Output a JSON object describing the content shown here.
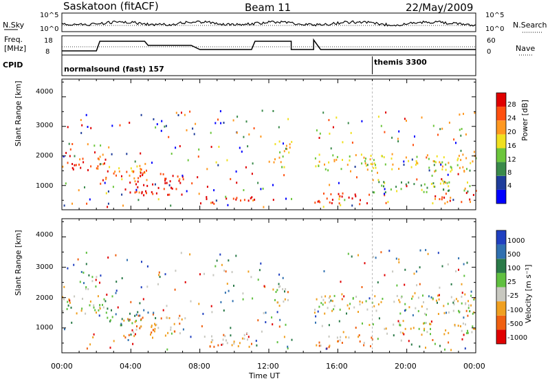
{
  "header": {
    "title": "Saskatoon (fitACF)",
    "beam": "Beam 11",
    "date": "22/May/2009"
  },
  "noise_panel": {
    "left_label": "N.Sky",
    "right_label": "N.Search",
    "left_ticks": [
      "10^5",
      "10^0"
    ],
    "right_ticks": [
      "10^5",
      "10^0"
    ]
  },
  "freq_panel": {
    "left_label_line1": "Freq.",
    "left_label_line2": "[MHz]",
    "right_label": "Nave",
    "left_ticks": [
      "18",
      "8"
    ],
    "right_ticks": [
      "60",
      "0"
    ]
  },
  "cpid_panel": {
    "label": "CPID",
    "program1": "normalsound (fast) 157",
    "program2": "themis 3300"
  },
  "chart_data": [
    {
      "type": "heatmap",
      "title": "",
      "xlabel": "Time UT",
      "ylabel": "Slant Range [km]",
      "x_ticks": [
        "00:00",
        "04:00",
        "08:00",
        "12:00",
        "16:00",
        "20:00",
        "00:00"
      ],
      "y_ticks": [
        "1000",
        "2000",
        "3000",
        "4000"
      ],
      "xlim_hours": [
        0,
        24
      ],
      "ylim_km": [
        180,
        4600
      ],
      "colorbar": {
        "label": "Power [dB]",
        "ticks": [
          "4",
          "8",
          "12",
          "16",
          "20",
          "24",
          "28"
        ],
        "colors": [
          "#0000ff",
          "#1e3c9a",
          "#3a8a4a",
          "#6cc63c",
          "#f0e020",
          "#ff9820",
          "#ff5010",
          "#e00000"
        ]
      },
      "data_gap_hours": [
        13.3,
        14.6
      ],
      "echo_regions": [
        {
          "t": [
            0.0,
            2.5
          ],
          "r": [
            1500,
            2100
          ],
          "level": 6
        },
        {
          "t": [
            2.5,
            5.0
          ],
          "r": [
            1100,
            1700
          ],
          "level": 5
        },
        {
          "t": [
            3.5,
            7.0
          ],
          "r": [
            700,
            1500
          ],
          "level": 7
        },
        {
          "t": [
            8.0,
            11.0
          ],
          "r": [
            400,
            700
          ],
          "level": 7
        },
        {
          "t": [
            12.2,
            13.2
          ],
          "r": [
            1800,
            2600
          ],
          "level": 4
        },
        {
          "t": [
            14.6,
            18.0
          ],
          "r": [
            400,
            800
          ],
          "level": 7
        },
        {
          "t": [
            14.6,
            24.0
          ],
          "r": [
            1500,
            2100
          ],
          "level": 4
        },
        {
          "t": [
            18.0,
            24.0
          ],
          "r": [
            800,
            1200
          ],
          "level": 3
        },
        {
          "t": [
            21.5,
            24.0
          ],
          "r": [
            400,
            800
          ],
          "level": 6
        }
      ]
    },
    {
      "type": "heatmap",
      "title": "",
      "xlabel": "Time UT",
      "ylabel": "Slant Range [km]",
      "x_ticks": [
        "00:00",
        "04:00",
        "08:00",
        "12:00",
        "16:00",
        "20:00",
        "00:00"
      ],
      "y_ticks": [
        "1000",
        "2000",
        "3000",
        "4000"
      ],
      "xlim_hours": [
        0,
        24
      ],
      "ylim_km": [
        180,
        4600
      ],
      "colorbar": {
        "label": "Velocity [m s⁻¹]",
        "ticks": [
          "1000",
          "500",
          "100",
          "25",
          "-25",
          "-100",
          "-500",
          "-1000"
        ],
        "colors": [
          "#2040c0",
          "#3070b0",
          "#2a7a48",
          "#60c040",
          "#c8c8c0",
          "#f0a020",
          "#f06010",
          "#e00000"
        ]
      },
      "data_gap_hours": [
        13.3,
        14.6
      ],
      "echo_regions": [
        {
          "t": [
            0.0,
            2.5
          ],
          "r": [
            1500,
            2100
          ],
          "level": 4
        },
        {
          "t": [
            1.0,
            2.0
          ],
          "r": [
            2300,
            2800
          ],
          "level": 3
        },
        {
          "t": [
            2.5,
            5.0
          ],
          "r": [
            1100,
            1700
          ],
          "level": 2
        },
        {
          "t": [
            3.5,
            7.0
          ],
          "r": [
            700,
            1500
          ],
          "level": 5
        },
        {
          "t": [
            8.0,
            11.0
          ],
          "r": [
            400,
            800
          ],
          "level": 5
        },
        {
          "t": [
            8.5,
            10.0
          ],
          "r": [
            500,
            800
          ],
          "level": 3
        },
        {
          "t": [
            12.2,
            13.2
          ],
          "r": [
            1800,
            2600
          ],
          "level": 4
        },
        {
          "t": [
            14.6,
            18.0
          ],
          "r": [
            400,
            800
          ],
          "level": 5
        },
        {
          "t": [
            14.6,
            24.0
          ],
          "r": [
            1500,
            2100
          ],
          "level": 4
        },
        {
          "t": [
            18.0,
            24.0
          ],
          "r": [
            800,
            1200
          ],
          "level": 4
        }
      ]
    }
  ]
}
